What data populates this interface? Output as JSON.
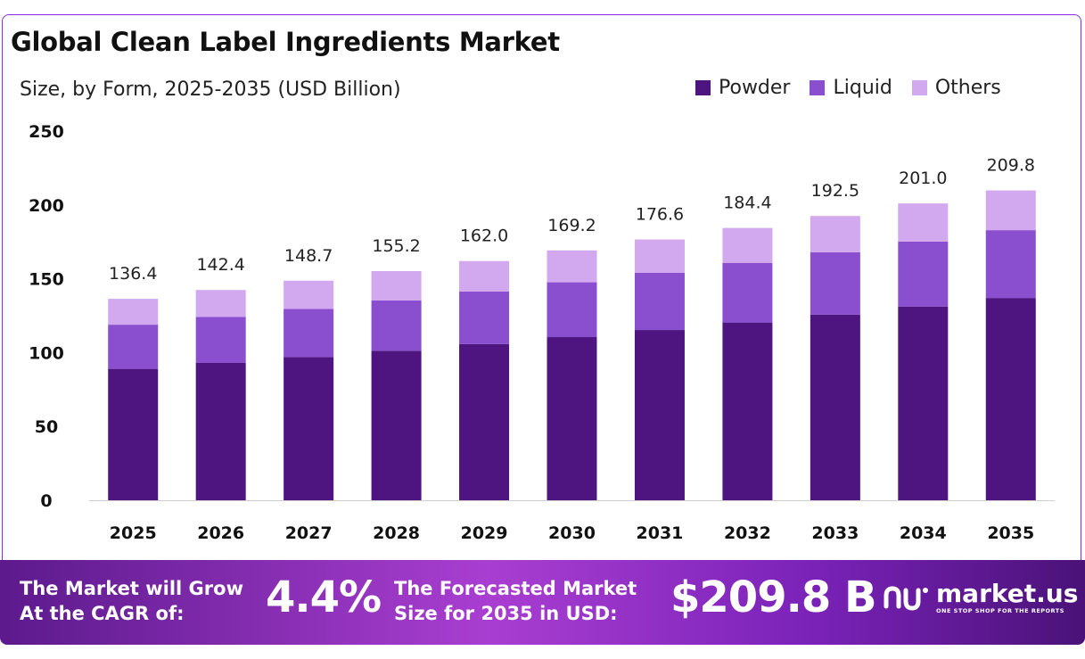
{
  "header": {
    "title": "Global Clean Label Ingredients Market",
    "subtitle": "Size, by Form, 2025-2035 (USD Billion)"
  },
  "colors": {
    "powder": "#4e1580",
    "liquid": "#8a4fcf",
    "others": "#d2a8ee",
    "footer_start": "#5c1a8c",
    "footer_end": "#4a1278"
  },
  "chart_data": {
    "type": "bar",
    "stacked": true,
    "categories": [
      "2025",
      "2026",
      "2027",
      "2028",
      "2029",
      "2030",
      "2031",
      "2032",
      "2033",
      "2034",
      "2035"
    ],
    "series": [
      {
        "name": "Powder",
        "values": [
          89.0,
          93.0,
          97.0,
          101.3,
          105.8,
          110.5,
          115.3,
          120.4,
          125.7,
          131.2,
          137.0
        ]
      },
      {
        "name": "Liquid",
        "values": [
          29.9,
          31.2,
          32.6,
          34.0,
          35.5,
          37.1,
          38.7,
          40.4,
          42.2,
          44.0,
          45.9
        ]
      },
      {
        "name": "Others",
        "values": [
          17.5,
          18.2,
          19.1,
          19.9,
          20.7,
          21.6,
          22.6,
          23.6,
          24.6,
          25.8,
          26.9
        ]
      }
    ],
    "totals": [
      "136.4",
      "142.4",
      "148.7",
      "155.2",
      "162.0",
      "169.2",
      "176.6",
      "184.4",
      "192.5",
      "201.0",
      "209.8"
    ],
    "y_ticks": [
      "0",
      "50",
      "100",
      "150",
      "200",
      "250"
    ],
    "ylim": [
      0,
      250
    ],
    "grid": false,
    "legend_position": "top-right"
  },
  "footer": {
    "cagr_label_line1": "The Market will Grow",
    "cagr_label_line2": "At the CAGR of:",
    "cagr_value": "4.4%",
    "forecast_label_line1": "The Forecasted Market",
    "forecast_label_line2": "Size for 2035 in USD:",
    "forecast_value": "$209.8 B",
    "brand_name": "market.us",
    "brand_tagline": "ONE STOP SHOP FOR THE REPORTS"
  }
}
